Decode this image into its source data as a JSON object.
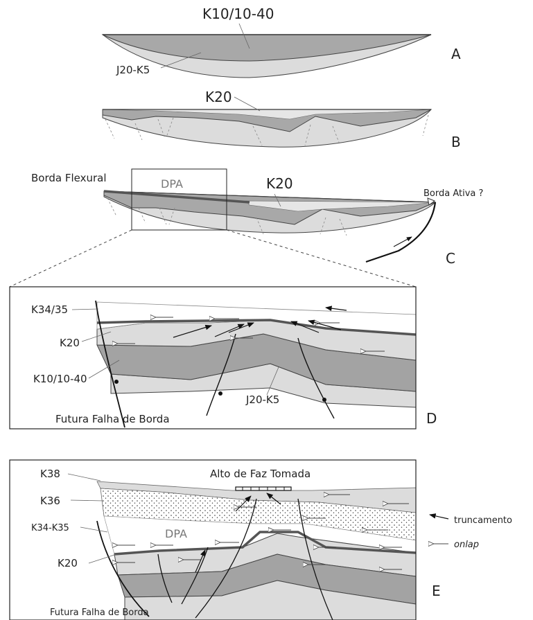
{
  "panels": {
    "A": {
      "letter": "A",
      "top_unit": "K10/10-40",
      "base_unit": "J20-K5"
    },
    "B": {
      "letter": "B",
      "unit": "K20"
    },
    "C": {
      "letter": "C",
      "left_label": "Borda Flexural",
      "dpa": "DPA",
      "unit": "K20",
      "right_label": "Borda Ativa ?"
    },
    "D": {
      "letter": "D",
      "units": [
        "K34/35",
        "K20",
        "K10/10-40",
        "J20-K5"
      ],
      "fault_label": "Futura Falha de Borda"
    },
    "E": {
      "letter": "E",
      "high_label": "Alto de Faz Tomada",
      "units": [
        "K38",
        "K36",
        "K34-K35",
        "K20"
      ],
      "dpa": "DPA",
      "fault_label": "Futura Falha de Borda"
    }
  },
  "legend": {
    "truncation": "truncamento",
    "onlap": "onlap"
  },
  "colors": {
    "light_fill": "#dcdcdc",
    "mid_fill": "#bdbdbd",
    "dark_fill": "#9b9b9b",
    "line": "#222222",
    "dpa_line": "#555555"
  }
}
